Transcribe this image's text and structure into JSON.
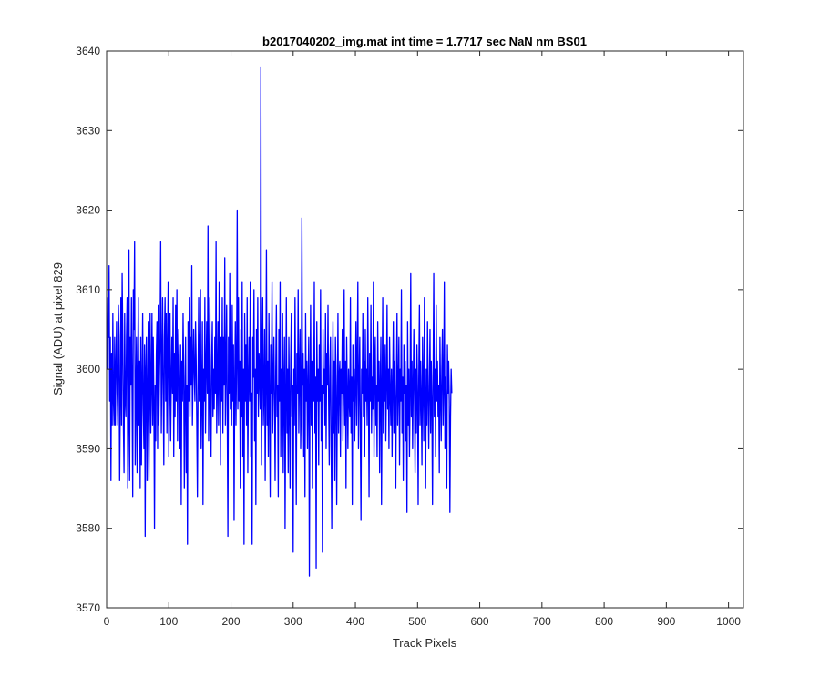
{
  "chart_data": {
    "type": "line",
    "title": "b2017040202_img.mat int time = 1.7717 sec  NaN nm BS01",
    "xlabel": "Track Pixels",
    "ylabel": "Signal (ADU) at pixel 829",
    "xlim": [
      0,
      1024
    ],
    "ylim": [
      3570,
      3640
    ],
    "xticks": [
      0,
      100,
      200,
      300,
      400,
      500,
      600,
      700,
      800,
      900,
      1000
    ],
    "yticks": [
      3570,
      3580,
      3590,
      3600,
      3610,
      3620,
      3630,
      3640
    ],
    "grid": false,
    "legend": "none",
    "line_color": "#0000ff",
    "series": [
      {
        "x_start": 1,
        "x_step": 1,
        "values": [
          3600,
          3609,
          3604,
          3613,
          3596,
          3604,
          3586,
          3602,
          3593,
          3607,
          3596,
          3593,
          3604,
          3593,
          3600,
          3606,
          3597,
          3593,
          3608,
          3604,
          3586,
          3596,
          3609,
          3593,
          3612,
          3604,
          3593,
          3587,
          3607,
          3596,
          3594,
          3604,
          3609,
          3585,
          3593,
          3615,
          3586,
          3604,
          3598,
          3609,
          3597,
          3584,
          3610,
          3605,
          3616,
          3588,
          3596,
          3604,
          3587,
          3599,
          3609,
          3593,
          3601,
          3585,
          3604,
          3588,
          3598,
          3607,
          3595,
          3590,
          3603,
          3579,
          3600,
          3604,
          3586,
          3597,
          3606,
          3586,
          3596,
          3607,
          3592,
          3598,
          3607,
          3593,
          3604,
          3596,
          3580,
          3598,
          3591,
          3602,
          3606,
          3590,
          3608,
          3593,
          3599,
          3604,
          3616,
          3592,
          3600,
          3609,
          3597,
          3588,
          3604,
          3609,
          3596,
          3607,
          3592,
          3603,
          3611,
          3589,
          3598,
          3607,
          3591,
          3598,
          3604,
          3597,
          3609,
          3589,
          3602,
          3594,
          3608,
          3596,
          3610,
          3591,
          3600,
          3605,
          3597,
          3590,
          3603,
          3583,
          3601,
          3596,
          3607,
          3599,
          3585,
          3597,
          3604,
          3587,
          3598,
          3578,
          3606,
          3596,
          3609,
          3594,
          3604,
          3598,
          3613,
          3593,
          3600,
          3605,
          3599,
          3596,
          3606,
          3601,
          3593,
          3584,
          3598,
          3609,
          3596,
          3602,
          3610,
          3590,
          3597,
          3606,
          3583,
          3600,
          3596,
          3609,
          3592,
          3600,
          3606,
          3597,
          3618,
          3591,
          3598,
          3609,
          3594,
          3589,
          3601,
          3606,
          3594,
          3600,
          3595,
          3604,
          3597,
          3616,
          3592,
          3598,
          3606,
          3593,
          3611,
          3599,
          3588,
          3604,
          3596,
          3609,
          3592,
          3604,
          3598,
          3614,
          3593,
          3600,
          3608,
          3594,
          3579,
          3604,
          3597,
          3612,
          3595,
          3600,
          3593,
          3608,
          3596,
          3603,
          3581,
          3598,
          3606,
          3593,
          3601,
          3620,
          3595,
          3609,
          3596,
          3601,
          3585,
          3605,
          3594,
          3611,
          3589,
          3600,
          3578,
          3607,
          3596,
          3603,
          3593,
          3609,
          3587,
          3598,
          3604,
          3596,
          3611,
          3589,
          3597,
          3578,
          3604,
          3599,
          3610,
          3591,
          3600,
          3583,
          3605,
          3597,
          3609,
          3594,
          3602,
          3599,
          3595,
          3638,
          3588,
          3600,
          3609,
          3593,
          3597,
          3605,
          3586,
          3598,
          3615,
          3593,
          3601,
          3589,
          3607,
          3596,
          3584,
          3603,
          3597,
          3611,
          3592,
          3598,
          3604,
          3596,
          3586,
          3600,
          3608,
          3594,
          3598,
          3584,
          3605,
          3596,
          3611,
          3589,
          3600,
          3593,
          3607,
          3587,
          3598,
          3604,
          3580,
          3596,
          3609,
          3592,
          3600,
          3587,
          3604,
          3596,
          3585,
          3601,
          3607,
          3594,
          3598,
          3577,
          3600,
          3593,
          3609,
          3596,
          3583,
          3602,
          3597,
          3610,
          3592,
          3599,
          3605,
          3590,
          3595,
          3619,
          3598,
          3602,
          3589,
          3600,
          3584,
          3607,
          3596,
          3601,
          3590,
          3598,
          3604,
          3574,
          3597,
          3608,
          3593,
          3601,
          3585,
          3604,
          3596,
          3611,
          3592,
          3599,
          3575,
          3606,
          3596,
          3600,
          3588,
          3603,
          3596,
          3610,
          3591,
          3598,
          3577,
          3605,
          3597,
          3600,
          3593,
          3607,
          3590,
          3602,
          3598,
          3608,
          3596,
          3588,
          3600,
          3604,
          3591,
          3580,
          3597,
          3606,
          3592,
          3601,
          3586,
          3604,
          3598,
          3583,
          3596,
          3607,
          3592,
          3599,
          3601,
          3589,
          3600,
          3597,
          3605,
          3591,
          3598,
          3610,
          3593,
          3601,
          3585,
          3604,
          3597,
          3590,
          3600,
          3596,
          3594,
          3609,
          3592,
          3599,
          3583,
          3603,
          3596,
          3600,
          3591,
          3598,
          3606,
          3593,
          3601,
          3611,
          3590,
          3598,
          3604,
          3592,
          3581,
          3600,
          3597,
          3607,
          3594,
          3601,
          3589,
          3605,
          3596,
          3600,
          3593,
          3609,
          3598,
          3584,
          3602,
          3596,
          3608,
          3592,
          3599,
          3595,
          3611,
          3589,
          3600,
          3604,
          3593,
          3598,
          3589,
          3606,
          3596,
          3601,
          3587,
          3598,
          3604,
          3583,
          3597,
          3609,
          3592,
          3600,
          3596,
          3603,
          3591,
          3598,
          3608,
          3595,
          3600,
          3590,
          3604,
          3597,
          3593,
          3600,
          3589,
          3598,
          3606,
          3592,
          3601,
          3596,
          3585,
          3599,
          3607,
          3593,
          3598,
          3604,
          3588,
          3600,
          3596,
          3610,
          3592,
          3599,
          3586,
          3603,
          3597,
          3601,
          3591,
          3598,
          3582,
          3606,
          3593,
          3600,
          3589,
          3597,
          3612,
          3594,
          3601,
          3590,
          3598,
          3605,
          3596,
          3587,
          3600,
          3592,
          3603,
          3597,
          3583,
          3599,
          3608,
          3593,
          3601,
          3596,
          3588,
          3604,
          3598,
          3591,
          3609,
          3597,
          3585,
          3600,
          3593,
          3606,
          3597,
          3590,
          3598,
          3605,
          3592,
          3601,
          3596,
          3583,
          3599,
          3612,
          3594,
          3600,
          3589,
          3608,
          3596,
          3601,
          3594,
          3598,
          3587,
          3604,
          3597,
          3591,
          3600,
          3605,
          3593,
          3598,
          3611,
          3590,
          3599,
          3596,
          3585,
          3603,
          3597,
          3601,
          3596,
          3582,
          3594,
          3600,
          3597
        ]
      }
    ]
  }
}
